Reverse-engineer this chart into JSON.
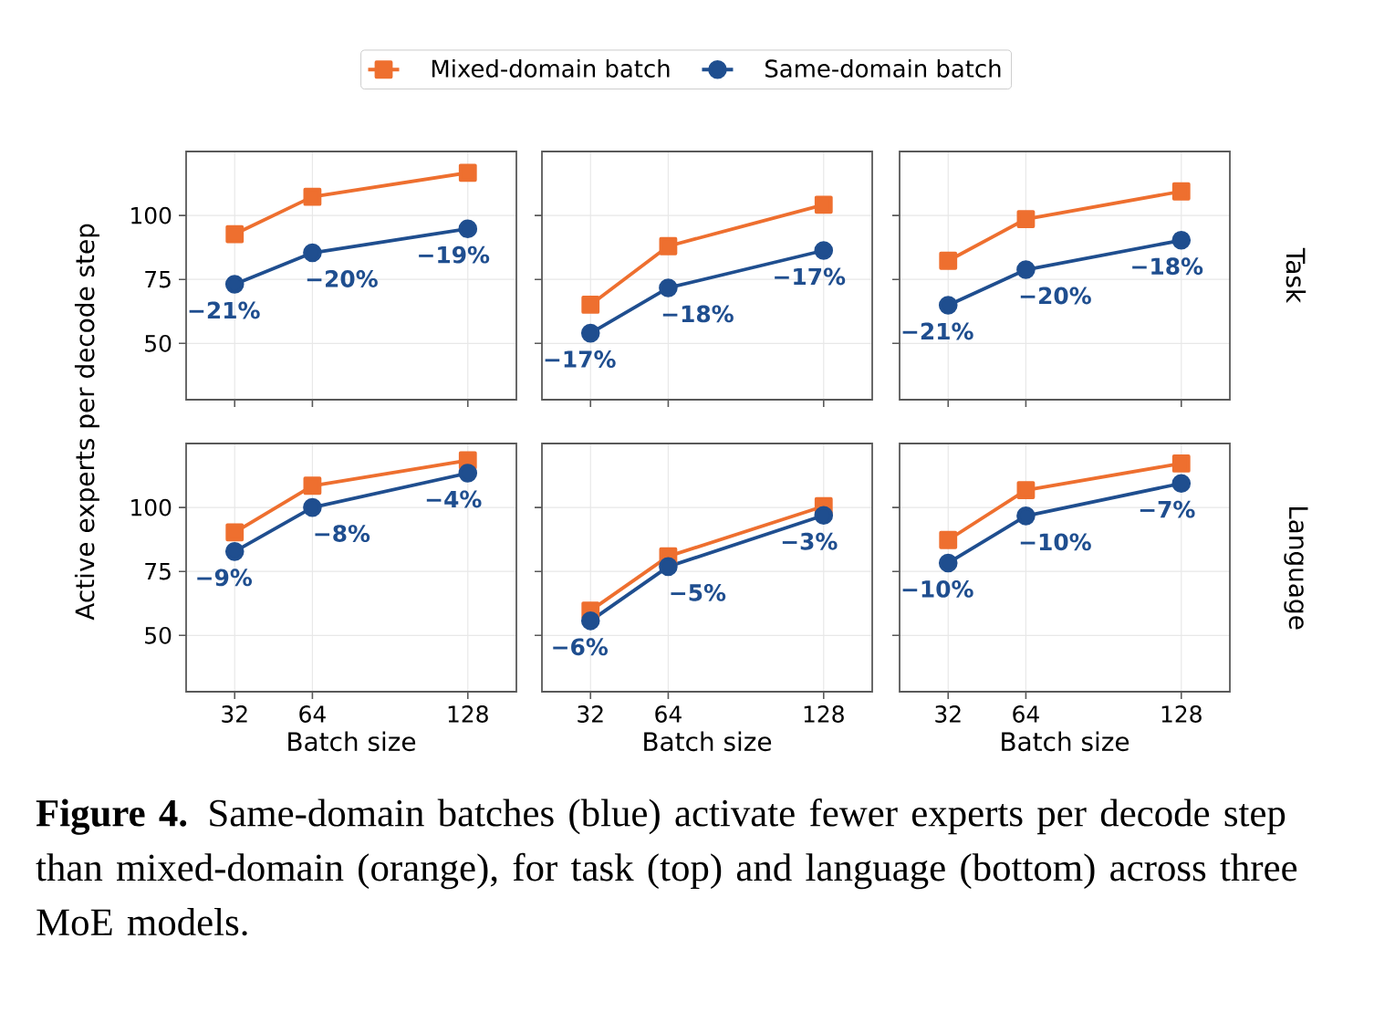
{
  "chart_data": [
    {
      "type": "line",
      "x": [
        32,
        64,
        128
      ],
      "xlim": [
        12,
        148
      ],
      "xticks": [
        32,
        64,
        128
      ],
      "ylim": [
        28,
        125
      ],
      "yticks": [
        50,
        75,
        100
      ],
      "grid": true,
      "legend": "top",
      "tick_labels": "y",
      "ylabel": "Active experts per decode step",
      "annotations": [
        {
          "text": "−21%",
          "x": 32,
          "y": 73.1
        },
        {
          "text": "−20%",
          "x": 64,
          "y": 85.4
        },
        {
          "text": "−19%",
          "x": 128,
          "y": 94.8
        },
        "**Figure 4.** Same-domain batches (blue) activate fewer experts per decode step than mixed-domain (orange), for task (top) and language (bottom) across three MoE models."
      ],
      "series": [
        {
          "name": "Mixed-domain batch",
          "color": "#ee6f2f",
          "marker": "square",
          "values": [
            92.7,
            107.3,
            116.7
          ]
        },
        {
          "name": "Same-domain batch",
          "color": "#1f4e8f",
          "marker": "circle",
          "values": [
            73.1,
            85.4,
            94.8
          ]
        }
      ]
    },
    {
      "type": "line",
      "x": [
        32,
        64,
        128
      ],
      "xlim": [
        12,
        148
      ],
      "xticks": [
        32,
        64,
        128
      ],
      "ylim": [
        28,
        125
      ],
      "yticks": [
        50,
        75,
        100
      ],
      "grid": true,
      "tick_labels": false,
      "annotations": [
        {
          "text": "−17%",
          "x": 32,
          "y": 54
        },
        {
          "text": "−18%",
          "x": 64,
          "y": 71.7
        },
        {
          "text": "−17%",
          "x": 128,
          "y": 86.3
        }
      ],
      "series": [
        {
          "color": "#ee6f2f",
          "marker": "square",
          "values": [
            65.1,
            88,
            104.2
          ]
        },
        {
          "color": "#1f4e8f",
          "marker": "circle",
          "values": [
            54,
            71.7,
            86.3
          ]
        }
      ]
    },
    {
      "type": "line",
      "x": [
        32,
        64,
        128
      ],
      "xlim": [
        12,
        148
      ],
      "xticks": [
        32,
        64,
        128
      ],
      "ylim": [
        28,
        125
      ],
      "yticks": [
        50,
        75,
        100
      ],
      "grid": true,
      "tick_labels": false,
      "y2label": "Task",
      "annotations": [
        {
          "text": "−21%",
          "x": 32,
          "y": 64.9
        },
        {
          "text": "−20%",
          "x": 64,
          "y": 78.8
        },
        {
          "text": "−18%",
          "x": 128,
          "y": 90.3
        }
      ],
      "series": [
        {
          "color": "#ee6f2f",
          "marker": "square",
          "values": [
            82.3,
            98.6,
            109.4
          ]
        },
        {
          "color": "#1f4e8f",
          "marker": "circle",
          "values": [
            64.9,
            78.8,
            90.3
          ]
        }
      ]
    },
    {
      "type": "line",
      "x": [
        32,
        64,
        128
      ],
      "xlim": [
        12,
        148
      ],
      "xticks": [
        32,
        64,
        128
      ],
      "ylim": [
        28,
        125
      ],
      "yticks": [
        50,
        75,
        100
      ],
      "grid": true,
      "xlabel": "Batch size",
      "annotations": [
        {
          "text": "−9%",
          "x": 32,
          "y": 82.8
        },
        {
          "text": "−8%",
          "x": 64,
          "y": 100
        },
        {
          "text": "−4%",
          "x": 128,
          "y": 113.4
        }
      ],
      "series": [
        {
          "color": "#ee6f2f",
          "marker": "square",
          "values": [
            90.3,
            108.5,
            118.4
          ]
        },
        {
          "color": "#1f4e8f",
          "marker": "circle",
          "values": [
            82.8,
            100,
            113.4
          ]
        }
      ]
    },
    {
      "type": "line",
      "x": [
        32,
        64,
        128
      ],
      "xlim": [
        12,
        148
      ],
      "xticks": [
        32,
        64,
        128
      ],
      "ylim": [
        28,
        125
      ],
      "yticks": [
        50,
        75,
        100
      ],
      "grid": true,
      "tick_labels": "x",
      "xlabel": "Batch size",
      "annotations": [
        {
          "text": "−6%",
          "x": 32,
          "y": 55.7
        },
        {
          "text": "−5%",
          "x": 64,
          "y": 76.9
        },
        {
          "text": "−3%",
          "x": 128,
          "y": 96.9
        }
      ],
      "series": [
        {
          "color": "#ee6f2f",
          "marker": "square",
          "values": [
            59.7,
            80.9,
            100.5
          ]
        },
        {
          "color": "#1f4e8f",
          "marker": "circle",
          "values": [
            55.7,
            76.9,
            96.9
          ]
        }
      ]
    },
    {
      "type": "line",
      "x": [
        32,
        64,
        128
      ],
      "xlim": [
        12,
        148
      ],
      "xticks": [
        32,
        64,
        128
      ],
      "ylim": [
        28,
        125
      ],
      "yticks": [
        50,
        75,
        100
      ],
      "grid": true,
      "tick_labels": "x",
      "xlabel": "Batch size",
      "y2label": "Language",
      "annotations": [
        {
          "text": "−10%",
          "x": 32,
          "y": 78.3
        },
        {
          "text": "−10%",
          "x": 64,
          "y": 96.7
        },
        {
          "text": "−7%",
          "x": 128,
          "y": 109.4
        }
      ],
      "series": [
        {
          "color": "#ee6f2f",
          "marker": "square",
          "values": [
            87.3,
            106.8,
            117.2
          ]
        },
        {
          "color": "#1f4e8f",
          "marker": "circle",
          "values": [
            78.3,
            96.7,
            109.4
          ]
        }
      ]
    }
  ]
}
